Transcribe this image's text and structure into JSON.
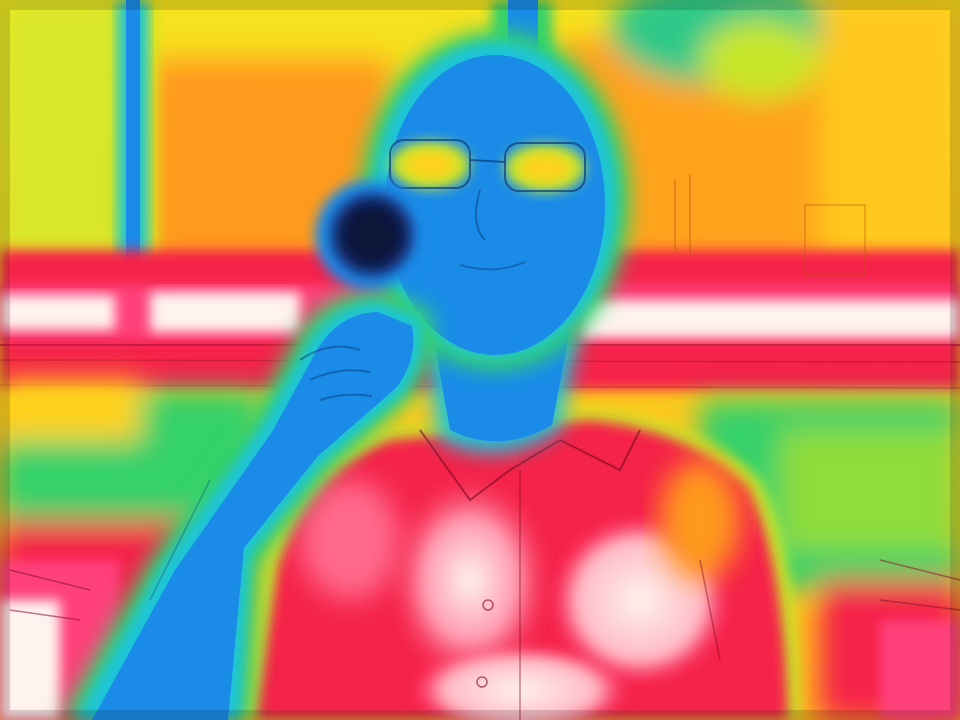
{
  "image": {
    "palette": {
      "hot_white": "#fff3ef",
      "hot_pink": "#ff3f7a",
      "hot_red": "#f5204a",
      "warm_orange": "#ff9a1c",
      "warm_yellow": "#ffd21a",
      "mid_lime": "#c8e62a",
      "mid_green": "#35d16a",
      "cool_cyan": "#1fc4d8",
      "cool_blue": "#1a8ce8",
      "cold_dark": "#101a40"
    }
  }
}
